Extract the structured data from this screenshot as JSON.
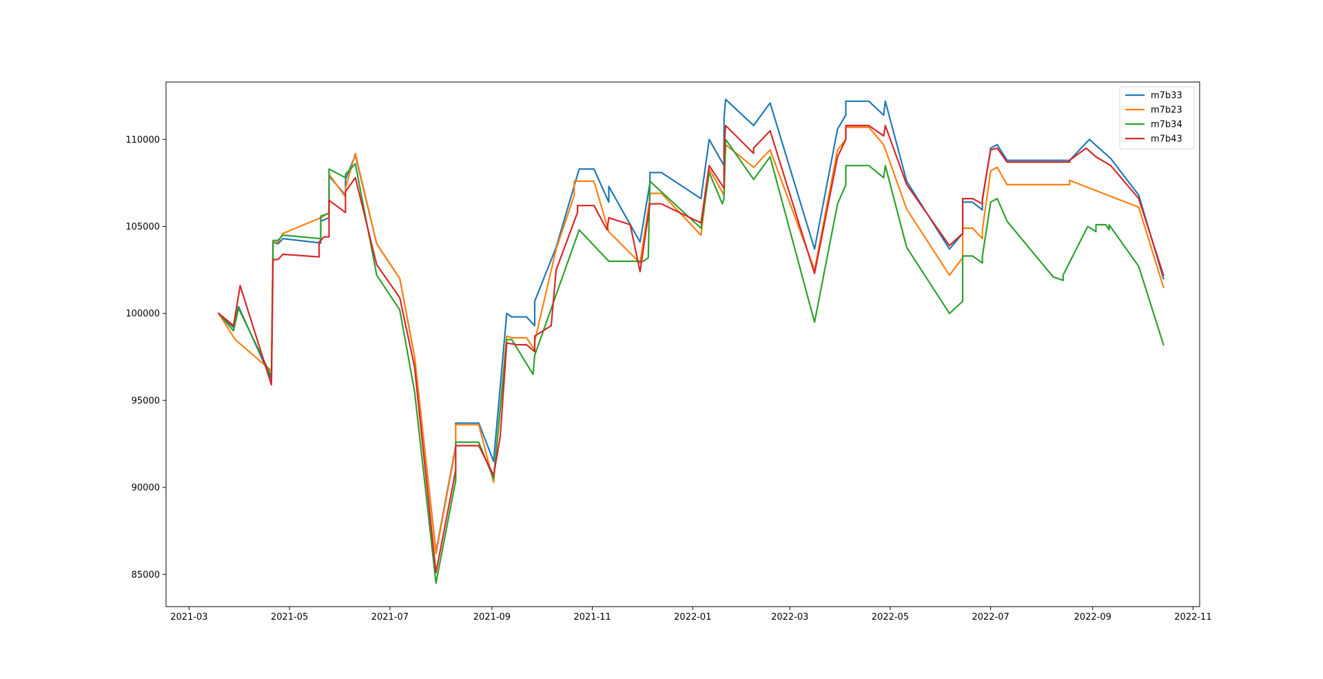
{
  "chart_data": {
    "type": "line",
    "title": "",
    "xlabel": "",
    "ylabel": "",
    "xlim": [
      "2021-02-15",
      "2022-11-05"
    ],
    "ylim": [
      83150,
      113300
    ],
    "x_ticks": [
      "2021-03",
      "2021-05",
      "2021-07",
      "2021-09",
      "2021-11",
      "2022-01",
      "2022-03",
      "2022-05",
      "2022-07",
      "2022-09",
      "2022-11"
    ],
    "y_ticks": [
      85000,
      90000,
      95000,
      100000,
      105000,
      110000
    ],
    "grid": false,
    "legend_position": "upper right",
    "series": [
      {
        "name": "m7b33",
        "color": "#1f77b4",
        "points": [
          [
            "2021-03-19",
            100000
          ],
          [
            "2021-03-28",
            99200
          ],
          [
            "2021-03-31",
            100400
          ],
          [
            "2021-04-20",
            96200
          ],
          [
            "2021-04-21",
            104100
          ],
          [
            "2021-04-24",
            104000
          ],
          [
            "2021-04-27",
            104300
          ],
          [
            "2021-05-20",
            104050
          ],
          [
            "2021-05-20",
            105300
          ],
          [
            "2021-05-25",
            105500
          ],
          [
            "2021-05-25",
            107900
          ],
          [
            "2021-06-04",
            106800
          ],
          [
            "2021-06-04",
            107700
          ],
          [
            "2021-06-10",
            109100
          ],
          [
            "2021-06-23",
            104000
          ],
          [
            "2021-07-07",
            102000
          ],
          [
            "2021-07-16",
            97500
          ],
          [
            "2021-07-29",
            86300
          ],
          [
            "2021-08-10",
            92400
          ],
          [
            "2021-08-10",
            93700
          ],
          [
            "2021-08-24",
            93700
          ],
          [
            "2021-09-02",
            91500
          ],
          [
            "2021-09-10",
            100000
          ],
          [
            "2021-09-13",
            99800
          ],
          [
            "2021-09-22",
            99800
          ],
          [
            "2021-09-27",
            99300
          ],
          [
            "2021-09-27",
            100700
          ],
          [
            "2021-10-10",
            103800
          ],
          [
            "2021-10-24",
            108300
          ],
          [
            "2021-11-02",
            108300
          ],
          [
            "2021-11-11",
            106400
          ],
          [
            "2021-11-11",
            107300
          ],
          [
            "2021-11-30",
            104100
          ],
          [
            "2021-12-06",
            107500
          ],
          [
            "2021-12-06",
            108100
          ],
          [
            "2021-12-13",
            108100
          ],
          [
            "2022-01-06",
            106600
          ],
          [
            "2022-01-11",
            110000
          ],
          [
            "2022-01-20",
            108500
          ],
          [
            "2022-01-20",
            111200
          ],
          [
            "2022-01-21",
            112300
          ],
          [
            "2022-02-07",
            110800
          ],
          [
            "2022-02-17",
            112100
          ],
          [
            "2022-03-16",
            103700
          ],
          [
            "2022-03-30",
            110600
          ],
          [
            "2022-04-04",
            111400
          ],
          [
            "2022-04-04",
            112200
          ],
          [
            "2022-04-18",
            112200
          ],
          [
            "2022-04-27",
            111400
          ],
          [
            "2022-04-28",
            112200
          ],
          [
            "2022-05-11",
            107600
          ],
          [
            "2022-06-06",
            103700
          ],
          [
            "2022-06-14",
            104600
          ],
          [
            "2022-06-14",
            106400
          ],
          [
            "2022-06-20",
            106400
          ],
          [
            "2022-06-26",
            105950
          ],
          [
            "2022-06-26",
            106500
          ],
          [
            "2022-07-01",
            109500
          ],
          [
            "2022-07-05",
            109700
          ],
          [
            "2022-07-11",
            108800
          ],
          [
            "2022-08-18",
            108800
          ],
          [
            "2022-08-18",
            108800
          ],
          [
            "2022-08-30",
            110000
          ],
          [
            "2022-09-12",
            108900
          ],
          [
            "2022-09-29",
            106800
          ],
          [
            "2022-10-14",
            102000
          ]
        ]
      },
      {
        "name": "m7b23",
        "color": "#ff7f0e",
        "points": [
          [
            "2021-03-19",
            100000
          ],
          [
            "2021-03-29",
            98500
          ],
          [
            "2021-04-20",
            96700
          ],
          [
            "2021-04-21",
            104100
          ],
          [
            "2021-04-24",
            104100
          ],
          [
            "2021-04-27",
            104600
          ],
          [
            "2021-05-20",
            105500
          ],
          [
            "2021-05-25",
            105800
          ],
          [
            "2021-05-25",
            108000
          ],
          [
            "2021-06-04",
            106700
          ],
          [
            "2021-06-04",
            107200
          ],
          [
            "2021-06-10",
            109200
          ],
          [
            "2021-06-23",
            104000
          ],
          [
            "2021-07-07",
            102000
          ],
          [
            "2021-07-16",
            97500
          ],
          [
            "2021-07-29",
            86200
          ],
          [
            "2021-08-10",
            92300
          ],
          [
            "2021-08-10",
            93600
          ],
          [
            "2021-08-24",
            93600
          ],
          [
            "2021-09-02",
            90300
          ],
          [
            "2021-09-10",
            98700
          ],
          [
            "2021-09-13",
            98600
          ],
          [
            "2021-09-22",
            98600
          ],
          [
            "2021-09-27",
            97900
          ],
          [
            "2021-09-27",
            98400
          ],
          [
            "2021-10-10",
            103700
          ],
          [
            "2021-10-21",
            106800
          ],
          [
            "2021-10-21",
            107600
          ],
          [
            "2021-11-02",
            107600
          ],
          [
            "2021-11-11",
            104700
          ],
          [
            "2021-11-30",
            102900
          ],
          [
            "2021-12-06",
            106600
          ],
          [
            "2021-12-06",
            106900
          ],
          [
            "2021-12-13",
            106900
          ],
          [
            "2022-01-06",
            104500
          ],
          [
            "2022-01-11",
            108300
          ],
          [
            "2022-01-20",
            106800
          ],
          [
            "2022-01-20",
            107200
          ],
          [
            "2022-01-21",
            109700
          ],
          [
            "2022-02-07",
            108400
          ],
          [
            "2022-02-17",
            109400
          ],
          [
            "2022-03-16",
            102500
          ],
          [
            "2022-03-30",
            109400
          ],
          [
            "2022-04-04",
            110000
          ],
          [
            "2022-04-04",
            110700
          ],
          [
            "2022-04-18",
            110700
          ],
          [
            "2022-04-27",
            109700
          ],
          [
            "2022-05-11",
            106000
          ],
          [
            "2022-06-06",
            102200
          ],
          [
            "2022-06-14",
            103200
          ],
          [
            "2022-06-14",
            104900
          ],
          [
            "2022-06-20",
            104900
          ],
          [
            "2022-06-26",
            104300
          ],
          [
            "2022-06-26",
            104800
          ],
          [
            "2022-07-01",
            108200
          ],
          [
            "2022-07-05",
            108400
          ],
          [
            "2022-07-11",
            107400
          ],
          [
            "2022-08-18",
            107400
          ],
          [
            "2022-08-18",
            107650
          ],
          [
            "2022-09-29",
            106100
          ],
          [
            "2022-10-14",
            101500
          ]
        ]
      },
      {
        "name": "m7b34",
        "color": "#2ca02c",
        "points": [
          [
            "2021-03-19",
            100000
          ],
          [
            "2021-03-28",
            99000
          ],
          [
            "2021-03-31",
            100300
          ],
          [
            "2021-04-20",
            96400
          ],
          [
            "2021-04-21",
            104200
          ],
          [
            "2021-04-24",
            104200
          ],
          [
            "2021-04-27",
            104500
          ],
          [
            "2021-05-20",
            104300
          ],
          [
            "2021-05-20",
            105600
          ],
          [
            "2021-05-25",
            105750
          ],
          [
            "2021-05-25",
            108300
          ],
          [
            "2021-06-04",
            107800
          ],
          [
            "2021-06-04",
            108000
          ],
          [
            "2021-06-10",
            108600
          ],
          [
            "2021-06-23",
            102200
          ],
          [
            "2021-07-07",
            100200
          ],
          [
            "2021-07-16",
            95500
          ],
          [
            "2021-07-29",
            84500
          ],
          [
            "2021-08-10",
            90400
          ],
          [
            "2021-08-10",
            92600
          ],
          [
            "2021-08-24",
            92600
          ],
          [
            "2021-09-02",
            90500
          ],
          [
            "2021-09-10",
            98500
          ],
          [
            "2021-09-13",
            98500
          ],
          [
            "2021-09-26",
            96500
          ],
          [
            "2021-09-27",
            97600
          ],
          [
            "2021-10-24",
            104800
          ],
          [
            "2021-11-11",
            103000
          ],
          [
            "2021-12-02",
            103000
          ],
          [
            "2021-12-05",
            103200
          ],
          [
            "2021-12-06",
            107600
          ],
          [
            "2022-01-06",
            104900
          ],
          [
            "2022-01-11",
            108100
          ],
          [
            "2022-01-19",
            106300
          ],
          [
            "2022-01-20",
            106600
          ],
          [
            "2022-01-21",
            110000
          ],
          [
            "2022-02-07",
            107700
          ],
          [
            "2022-02-17",
            109000
          ],
          [
            "2022-03-16",
            99500
          ],
          [
            "2022-03-30",
            106300
          ],
          [
            "2022-04-04",
            107400
          ],
          [
            "2022-04-04",
            108500
          ],
          [
            "2022-04-18",
            108500
          ],
          [
            "2022-04-27",
            107800
          ],
          [
            "2022-04-28",
            108500
          ],
          [
            "2022-05-11",
            103800
          ],
          [
            "2022-06-06",
            100000
          ],
          [
            "2022-06-14",
            100700
          ],
          [
            "2022-06-14",
            103300
          ],
          [
            "2022-06-20",
            103300
          ],
          [
            "2022-06-26",
            102900
          ],
          [
            "2022-06-26",
            103300
          ],
          [
            "2022-07-01",
            106400
          ],
          [
            "2022-07-05",
            106600
          ],
          [
            "2022-07-11",
            105300
          ],
          [
            "2022-08-08",
            102100
          ],
          [
            "2022-08-14",
            101900
          ],
          [
            "2022-08-14",
            102200
          ],
          [
            "2022-08-29",
            105000
          ],
          [
            "2022-09-03",
            104700
          ],
          [
            "2022-09-03",
            105100
          ],
          [
            "2022-09-09",
            105100
          ],
          [
            "2022-09-11",
            104800
          ],
          [
            "2022-09-11",
            105100
          ],
          [
            "2022-09-29",
            102700
          ],
          [
            "2022-10-14",
            98200
          ]
        ]
      },
      {
        "name": "m7b43",
        "color": "#d62728",
        "points": [
          [
            "2021-03-19",
            100000
          ],
          [
            "2021-03-28",
            99300
          ],
          [
            "2021-04-01",
            101600
          ],
          [
            "2021-04-20",
            95900
          ],
          [
            "2021-04-21",
            103100
          ],
          [
            "2021-04-24",
            103100
          ],
          [
            "2021-04-27",
            103400
          ],
          [
            "2021-05-19",
            103250
          ],
          [
            "2021-05-19",
            104100
          ],
          [
            "2021-05-22",
            104400
          ],
          [
            "2021-05-25",
            104400
          ],
          [
            "2021-05-25",
            106500
          ],
          [
            "2021-06-04",
            105800
          ],
          [
            "2021-06-04",
            107000
          ],
          [
            "2021-06-10",
            107800
          ],
          [
            "2021-06-23",
            102800
          ],
          [
            "2021-07-07",
            100900
          ],
          [
            "2021-07-16",
            96900
          ],
          [
            "2021-07-29",
            85100
          ],
          [
            "2021-08-10",
            91000
          ],
          [
            "2021-08-10",
            92400
          ],
          [
            "2021-08-24",
            92400
          ],
          [
            "2021-09-02",
            90700
          ],
          [
            "2021-09-06",
            92900
          ],
          [
            "2021-09-10",
            98300
          ],
          [
            "2021-09-16",
            98200
          ],
          [
            "2021-09-22",
            98200
          ],
          [
            "2021-09-27",
            97800
          ],
          [
            "2021-09-27",
            98700
          ],
          [
            "2021-10-07",
            99300
          ],
          [
            "2021-10-10",
            102500
          ],
          [
            "2021-10-23",
            105800
          ],
          [
            "2021-10-23",
            106200
          ],
          [
            "2021-11-02",
            106200
          ],
          [
            "2021-11-10",
            104800
          ],
          [
            "2021-11-11",
            105500
          ],
          [
            "2021-11-24",
            105100
          ],
          [
            "2021-11-30",
            102400
          ],
          [
            "2021-12-06",
            106300
          ],
          [
            "2021-12-13",
            106300
          ],
          [
            "2022-01-06",
            105200
          ],
          [
            "2022-01-11",
            108500
          ],
          [
            "2022-01-20",
            107200
          ],
          [
            "2022-01-20",
            109500
          ],
          [
            "2022-01-21",
            110800
          ],
          [
            "2022-02-07",
            109200
          ],
          [
            "2022-02-07",
            109500
          ],
          [
            "2022-02-17",
            110500
          ],
          [
            "2022-03-16",
            102300
          ],
          [
            "2022-03-30",
            109000
          ],
          [
            "2022-04-04",
            110000
          ],
          [
            "2022-04-04",
            110800
          ],
          [
            "2022-04-18",
            110800
          ],
          [
            "2022-04-27",
            110200
          ],
          [
            "2022-04-28",
            110800
          ],
          [
            "2022-05-11",
            107400
          ],
          [
            "2022-06-06",
            103900
          ],
          [
            "2022-06-14",
            104600
          ],
          [
            "2022-06-14",
            106600
          ],
          [
            "2022-06-20",
            106600
          ],
          [
            "2022-06-26",
            106300
          ],
          [
            "2022-06-26",
            106600
          ],
          [
            "2022-07-01",
            109400
          ],
          [
            "2022-07-05",
            109500
          ],
          [
            "2022-07-11",
            108700
          ],
          [
            "2022-08-18",
            108700
          ],
          [
            "2022-08-18",
            108800
          ],
          [
            "2022-08-28",
            109500
          ],
          [
            "2022-09-03",
            109000
          ],
          [
            "2022-09-12",
            108500
          ],
          [
            "2022-09-29",
            106600
          ],
          [
            "2022-10-14",
            102200
          ]
        ]
      }
    ]
  }
}
